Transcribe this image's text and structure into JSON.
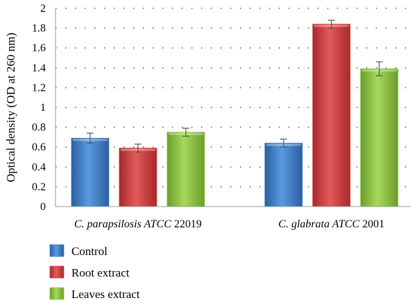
{
  "chart_data": {
    "type": "bar",
    "ylabel": "Optical density (OD at 260 nm)",
    "ylim": [
      0,
      2
    ],
    "yticks": [
      "0",
      "0.2",
      "0.4",
      "0.6",
      "0.8",
      "1",
      "1.2",
      "1.4",
      "1.6",
      "1.8",
      "2"
    ],
    "categories": [
      {
        "italic": "C. parapsilosis ATCC",
        "plain": " 22019"
      },
      {
        "italic": "C. glabrata ATCC",
        "plain": " 2001"
      }
    ],
    "series": [
      {
        "name": "Control",
        "color": "#3d7fc9",
        "values": [
          0.69,
          0.64
        ],
        "errors": [
          0.05,
          0.04
        ]
      },
      {
        "name": "Root extract",
        "color": "#d43d3d",
        "values": [
          0.59,
          1.84
        ],
        "errors": [
          0.04,
          0.04
        ]
      },
      {
        "name": "Leaves extract",
        "color": "#8cc63f",
        "values": [
          0.75,
          1.39
        ],
        "errors": [
          0.04,
          0.07
        ]
      }
    ],
    "grid": "dotted",
    "legend": "bottom-left"
  }
}
